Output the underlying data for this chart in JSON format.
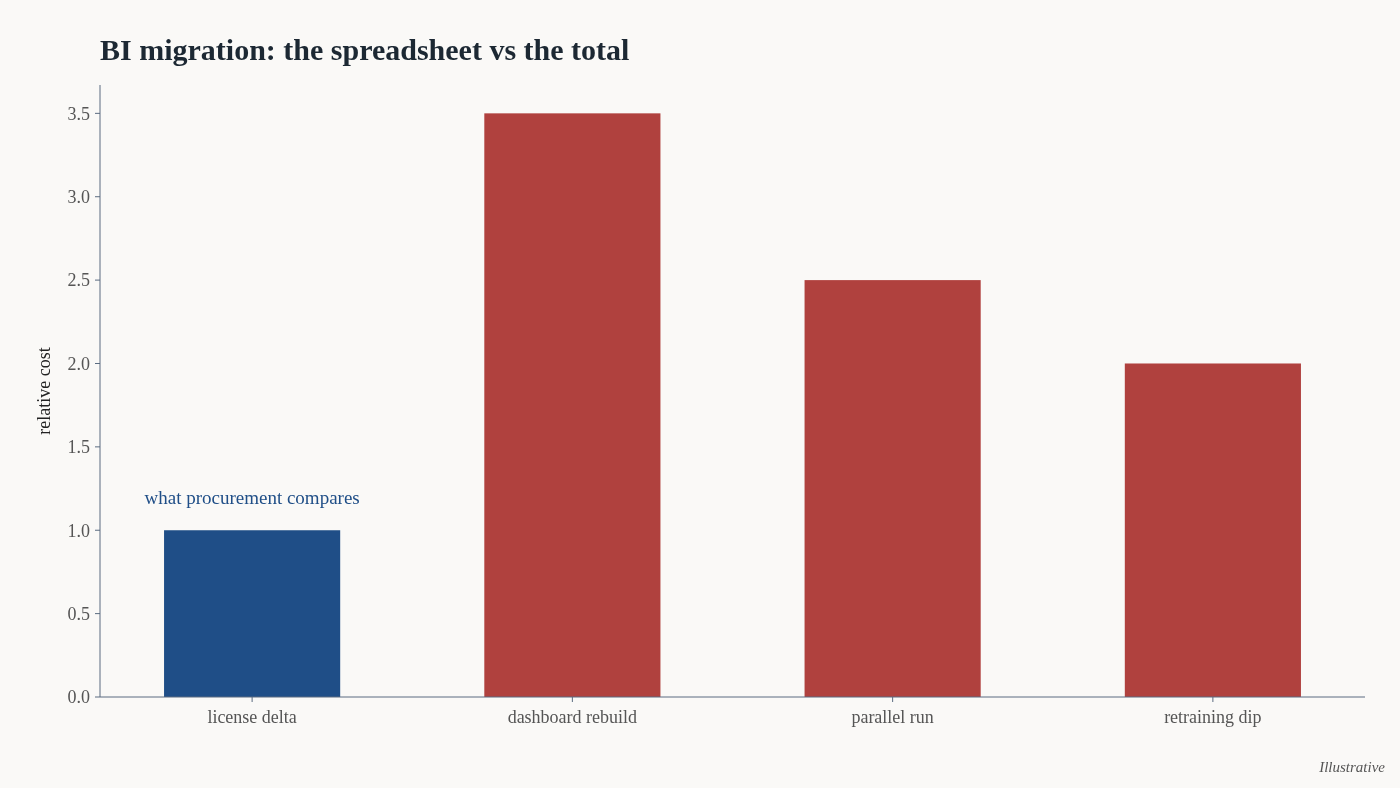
{
  "chart_data": {
    "type": "bar",
    "title": "BI migration: the spreadsheet vs the total",
    "ylabel": "relative cost",
    "categories": [
      "license delta",
      "dashboard rebuild",
      "parallel run",
      "retraining dip"
    ],
    "values": [
      1.0,
      3.5,
      2.5,
      2.0
    ],
    "colors": [
      "#1f4e87",
      "#b0413e",
      "#b0413e",
      "#b0413e"
    ],
    "ylim": [
      0,
      3.67
    ],
    "yticks": [
      {
        "value": 0,
        "label": "0.0"
      },
      0.5,
      {
        "value": 1,
        "label": "1.0"
      },
      1.5,
      {
        "value": 2,
        "label": "2.0"
      },
      2.5,
      {
        "value": 3,
        "label": "3.0"
      },
      3.5
    ],
    "annotations": [
      {
        "text": "what procurement compares",
        "x": "license delta",
        "y": 1.0
      },
      "Illustrative"
    ],
    "grid": false
  }
}
